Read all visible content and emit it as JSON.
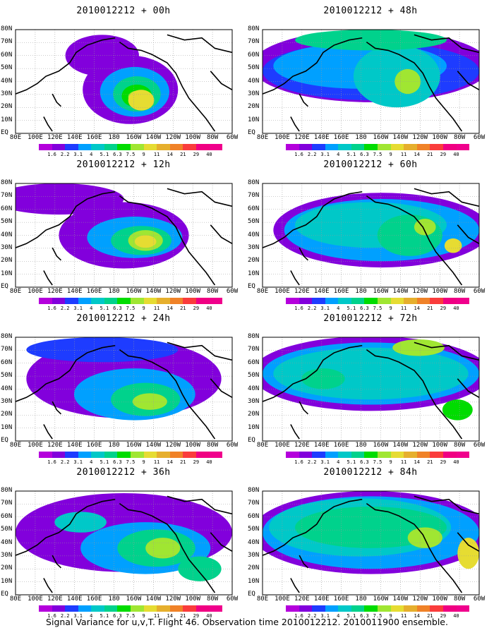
{
  "panels": [
    {
      "title": "2010012212 + 00h"
    },
    {
      "title": "2010012212 + 48h"
    },
    {
      "title": "2010012212 + 12h"
    },
    {
      "title": "2010012212 + 60h"
    },
    {
      "title": "2010012212 + 24h"
    },
    {
      "title": "2010012212 + 72h"
    },
    {
      "title": "2010012212 + 36h"
    },
    {
      "title": "2010012212 + 84h"
    }
  ],
  "lat_labels": [
    "80N",
    "70N",
    "60N",
    "50N",
    "40N",
    "30N",
    "20N",
    "10N",
    "EQ"
  ],
  "lon_labels": [
    "80E",
    "100E",
    "120E",
    "140E",
    "160E",
    "180",
    "160W",
    "140W",
    "120W",
    "100W",
    "80W",
    "60W"
  ],
  "colorbar": {
    "labels": [
      "1.6",
      "2.2",
      "3.1",
      "4",
      "5.1",
      "6.3",
      "7.5",
      "9",
      "11",
      "14",
      "21",
      "29",
      "40"
    ],
    "colors": [
      "#b400dc",
      "#8200dc",
      "#1e3cff",
      "#00a0ff",
      "#00c8c8",
      "#00d28c",
      "#00dc00",
      "#a0e632",
      "#e6dc32",
      "#e6af2d",
      "#f08228",
      "#fa3c3c",
      "#f00082"
    ]
  },
  "footer": "Signal Variance for u,v,T. Flight 46. Observation time 2010012212. 2010011900 ensemble."
}
